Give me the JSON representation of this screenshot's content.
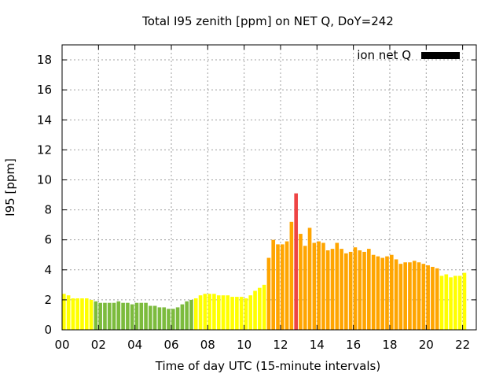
{
  "chart_data": {
    "type": "bar",
    "title": "Total I95 zenith [ppm] on NET Q, DoY=242",
    "xlabel": "Time of day UTC (15-minute intervals)",
    "ylabel": "I95 [ppm]",
    "xlim": [
      0,
      22.75
    ],
    "ylim": [
      0,
      19
    ],
    "grid": true,
    "legend": {
      "label": "ion net Q",
      "color": "#000000",
      "position": "top-right"
    },
    "x_ticks": [
      "00",
      "02",
      "04",
      "06",
      "08",
      "10",
      "12",
      "14",
      "16",
      "18",
      "20",
      "22"
    ],
    "y_ticks": [
      "0",
      "2",
      "4",
      "6",
      "8",
      "10",
      "12",
      "14",
      "16",
      "18"
    ],
    "x_tick_values": [
      0,
      2,
      4,
      6,
      8,
      10,
      12,
      14,
      16,
      18,
      20,
      22
    ],
    "y_tick_values": [
      0,
      2,
      4,
      6,
      8,
      10,
      12,
      14,
      16,
      18
    ],
    "bar_interval_hours": 0.25,
    "bar_start_hour": 0,
    "level_colors": {
      "0": "#ffff00",
      "1": "#7cbb3d",
      "2": "#ffa500",
      "3": "#ee4444"
    },
    "values": [
      2.4,
      2.3,
      2.1,
      2.1,
      2.1,
      2.1,
      2.0,
      1.9,
      1.8,
      1.8,
      1.8,
      1.8,
      1.9,
      1.8,
      1.8,
      1.7,
      1.8,
      1.8,
      1.8,
      1.6,
      1.6,
      1.5,
      1.5,
      1.4,
      1.4,
      1.5,
      1.7,
      1.9,
      2.0,
      2.1,
      2.3,
      2.4,
      2.4,
      2.4,
      2.3,
      2.3,
      2.3,
      2.2,
      2.2,
      2.2,
      2.1,
      2.3,
      2.6,
      2.8,
      3.0,
      4.8,
      6.0,
      5.7,
      5.7,
      5.9,
      7.2,
      9.1,
      6.4,
      5.6,
      6.8,
      5.8,
      5.9,
      5.8,
      5.3,
      5.4,
      5.8,
      5.4,
      5.1,
      5.2,
      5.5,
      5.3,
      5.2,
      5.4,
      5.0,
      4.9,
      4.8,
      4.9,
      5.0,
      4.7,
      4.4,
      4.5,
      4.5,
      4.6,
      4.5,
      4.4,
      4.3,
      4.2,
      4.1,
      3.6,
      3.7,
      3.5,
      3.6,
      3.6,
      3.8
    ],
    "levels": [
      0,
      0,
      0,
      0,
      0,
      0,
      0,
      1,
      1,
      1,
      1,
      1,
      1,
      1,
      1,
      1,
      1,
      1,
      1,
      1,
      1,
      1,
      1,
      1,
      1,
      1,
      1,
      1,
      1,
      0,
      0,
      0,
      0,
      0,
      0,
      0,
      0,
      0,
      0,
      0,
      0,
      0,
      0,
      0,
      0,
      2,
      2,
      2,
      2,
      2,
      2,
      3,
      2,
      2,
      2,
      2,
      2,
      2,
      2,
      2,
      2,
      2,
      2,
      2,
      2,
      2,
      2,
      2,
      2,
      2,
      2,
      2,
      2,
      2,
      2,
      2,
      2,
      2,
      2,
      2,
      2,
      2,
      2,
      0,
      0,
      0,
      0,
      0,
      0
    ]
  }
}
